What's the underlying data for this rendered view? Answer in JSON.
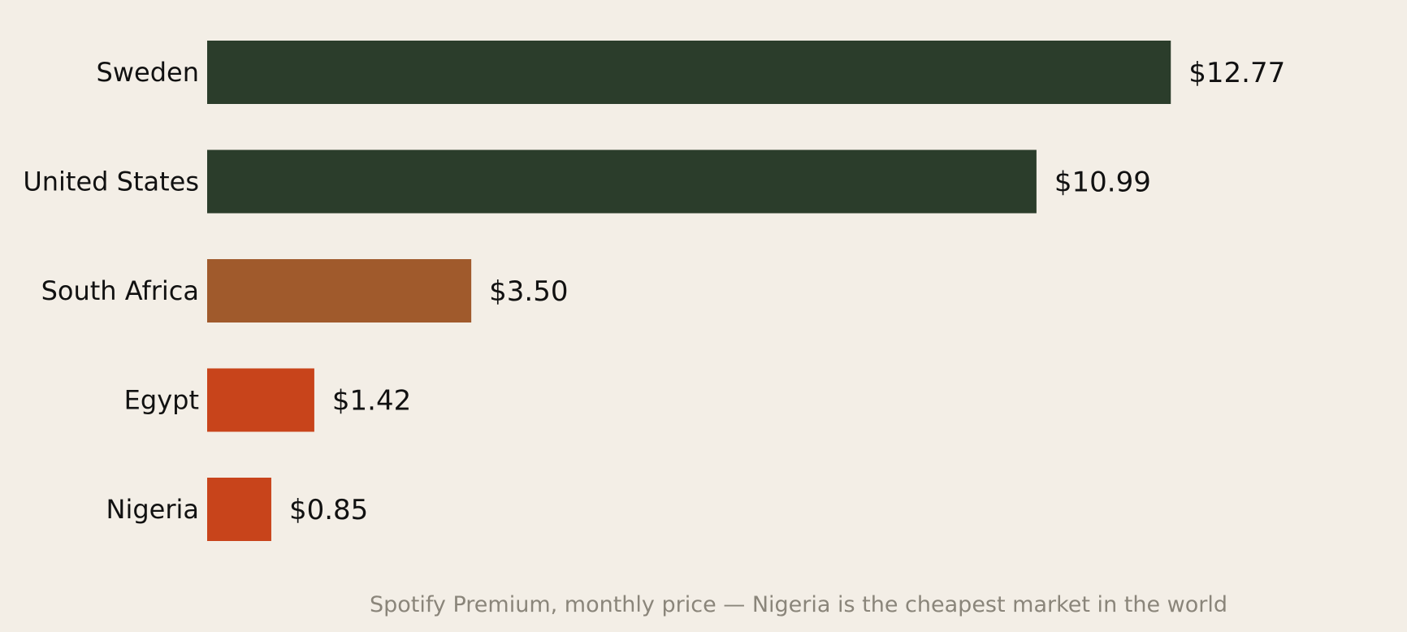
{
  "chart_data": {
    "type": "bar",
    "orientation": "horizontal",
    "categories": [
      "Sweden",
      "United States",
      "South Africa",
      "Egypt",
      "Nigeria"
    ],
    "values": [
      12.77,
      10.99,
      3.5,
      1.42,
      0.85
    ],
    "value_labels": [
      "$12.77",
      "$10.99",
      "$3.50",
      "$1.42",
      "$0.85"
    ],
    "bar_colors": [
      "#2b3d2b",
      "#2b3d2b",
      "#a05a2c",
      "#c8441b",
      "#c8441b"
    ],
    "caption": "Spotify Premium, monthly price — Nigeria is the cheapest market in the world",
    "xlim": [
      0,
      15.9
    ],
    "grid": false,
    "legend": "none"
  },
  "colors": {
    "background": "#f3eee6",
    "text": "#111111",
    "caption_text": "#8a857a"
  }
}
